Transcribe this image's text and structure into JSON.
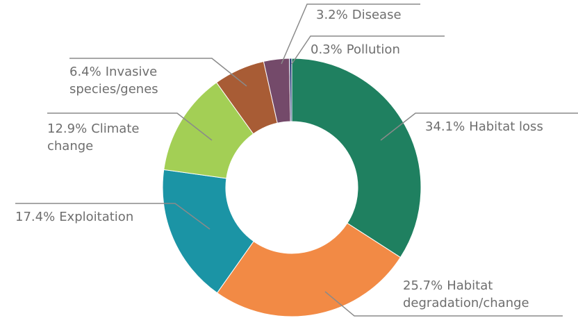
{
  "chart_data": {
    "type": "donut",
    "categories": [
      [
        "Habitat loss"
      ],
      [
        "Habitat",
        "degradation/change"
      ],
      [
        "Exploitation"
      ],
      [
        "Climate",
        "change"
      ],
      [
        "Invasive",
        "species/genes"
      ],
      [
        "Disease"
      ],
      [
        "Pollution"
      ]
    ],
    "values": [
      34.1,
      25.7,
      17.4,
      12.9,
      6.4,
      3.2,
      0.3
    ],
    "value_labels": [
      "34.1%",
      "25.7%",
      "17.4%",
      "12.9%",
      "6.4%",
      "3.2%",
      "0.3%"
    ],
    "colors": [
      "#1f8060",
      "#f28a45",
      "#1b94a5",
      "#a3cf55",
      "#a85c35",
      "#744a6a",
      "#2a3d7a"
    ]
  }
}
